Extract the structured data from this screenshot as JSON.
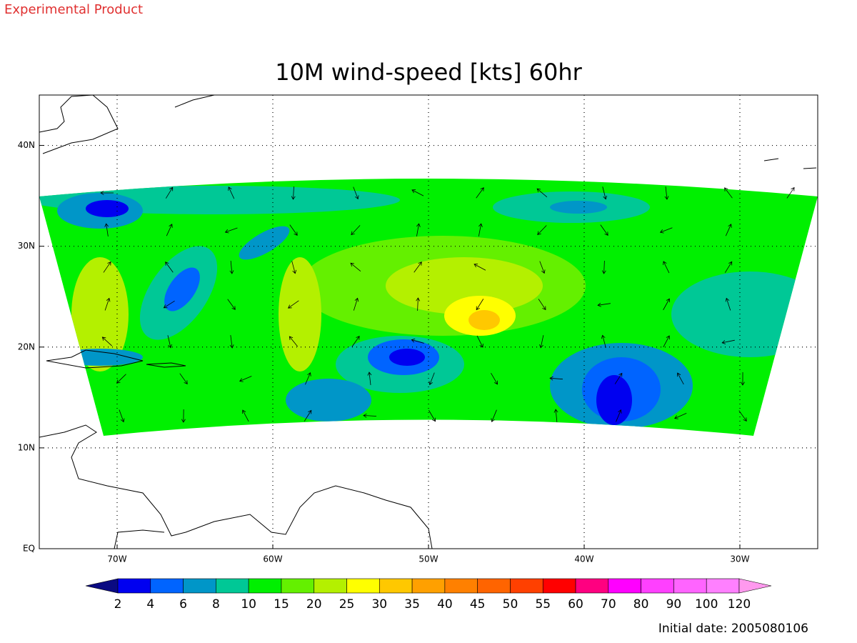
{
  "header": {
    "note": "Experimental Product"
  },
  "title": "10M wind-speed [kts] 60hr",
  "map": {
    "lon_range": [
      -75,
      -25
    ],
    "lat_range": [
      0,
      45
    ],
    "lon_ticks": [
      {
        "value": -70,
        "label": "70W"
      },
      {
        "value": -60,
        "label": "60W"
      },
      {
        "value": -50,
        "label": "50W"
      },
      {
        "value": -40,
        "label": "40W"
      },
      {
        "value": -30,
        "label": "30W"
      }
    ],
    "lat_ticks": [
      {
        "value": 0,
        "label": "EQ"
      },
      {
        "value": 10,
        "label": "10N"
      },
      {
        "value": 20,
        "label": "20N"
      },
      {
        "value": 30,
        "label": "30N"
      },
      {
        "value": 40,
        "label": "40N"
      }
    ]
  },
  "colorbar": {
    "levels": [
      2,
      4,
      6,
      8,
      10,
      15,
      20,
      25,
      30,
      35,
      40,
      45,
      50,
      55,
      60,
      70,
      80,
      90,
      100,
      120
    ],
    "colors": [
      "#0a0a82",
      "#0000f0",
      "#0064ff",
      "#0096c8",
      "#00c896",
      "#00f000",
      "#64f000",
      "#b4f000",
      "#ffff00",
      "#ffc800",
      "#ffa000",
      "#ff8000",
      "#ff6400",
      "#ff4000",
      "#ff0000",
      "#ff0080",
      "#ff00ff",
      "#ff40ff",
      "#ff64ff",
      "#ff80ff",
      "#ff99ee"
    ]
  },
  "footer": {
    "initial_date": "Initial date: 2005080106"
  }
}
